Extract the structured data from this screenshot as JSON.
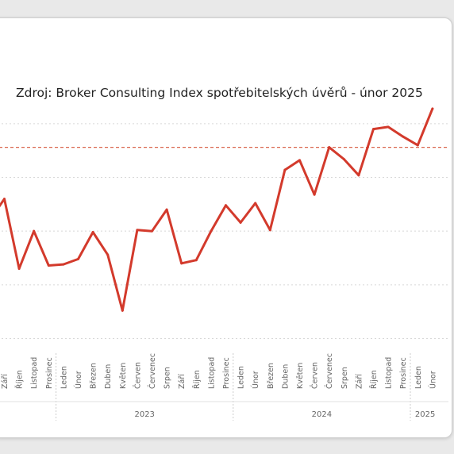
{
  "chart_data": {
    "type": "line",
    "title": "Zdroj: Broker Consulting Index spotřebitelských úvěrů - únor 2025",
    "series_color": "#d33a2c",
    "reference_color": "#d9674f",
    "gridlines": true,
    "x_labels": [
      "Září",
      "Říjen",
      "Listopad",
      "Prosinec",
      "Leden",
      "Únor",
      "Březen",
      "Duben",
      "Květen",
      "Červen",
      "Červenec",
      "Srpen",
      "Září",
      "Říjen",
      "Listopad",
      "Prosinec",
      "Leden",
      "Únor",
      "Březen",
      "Duben",
      "Květen",
      "Červen",
      "Červenec",
      "Srpen",
      "Září",
      "Říjen",
      "Listopad",
      "Prosinec",
      "Leden",
      "Únor"
    ],
    "years": [
      {
        "label": "2023",
        "from": 4,
        "to": 15
      },
      {
        "label": "2024",
        "from": 16,
        "to": 27
      },
      {
        "label": "2025",
        "from": 28,
        "to": 29
      }
    ],
    "values": [
      5.8,
      5.15,
      5.5,
      5.18,
      5.19,
      5.24,
      5.49,
      5.28,
      4.76,
      5.51,
      5.5,
      5.7,
      5.2,
      5.23,
      5.5,
      5.74,
      5.58,
      5.76,
      5.51,
      6.07,
      6.16,
      5.84,
      6.28,
      6.17,
      6.02,
      6.45,
      6.47,
      6.38,
      6.3,
      6.64
    ],
    "values_before_first_label": [
      5.6
    ],
    "reference_value": 6.28,
    "y_range_shown": [
      6.95,
      4.4
    ],
    "y_axis_note": "y axis descends; tick labels cropped off"
  }
}
